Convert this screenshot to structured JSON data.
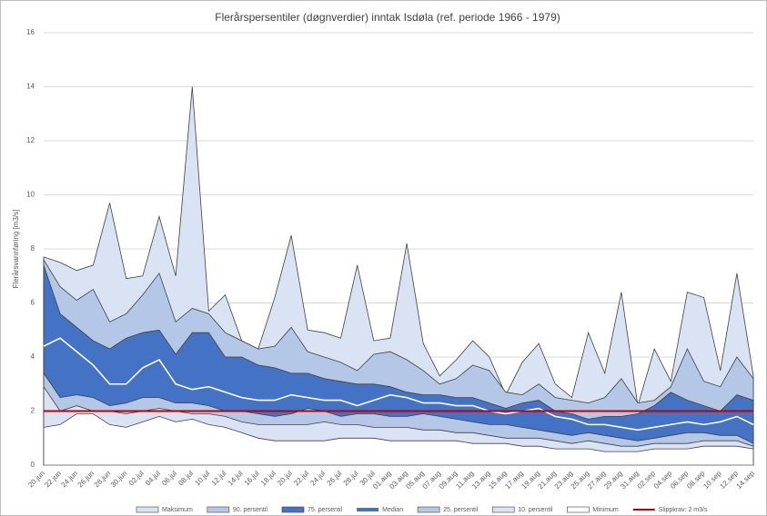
{
  "chart_data": {
    "type": "percentile-bands",
    "title": "Flerårspersentiler (døgnverdier) inntak Isdøla (ref. periode 1966 - 1979)",
    "y_label": "Flerårsvannføring [m3/s]",
    "categories": [
      "20.jun",
      "22.jun",
      "24.jun",
      "26.jun",
      "28.jun",
      "30.jun",
      "02.jul",
      "04.jul",
      "06.jul",
      "08.jul",
      "10.jul",
      "12.jul",
      "14.jul",
      "16.jul",
      "18.jul",
      "20.jul",
      "22.jul",
      "24.jul",
      "26.jul",
      "28.jul",
      "30.jul",
      "01.aug",
      "03.aug",
      "05.aug",
      "07.aug",
      "09.aug",
      "11.aug",
      "13.aug",
      "15.aug",
      "17.aug",
      "19.aug",
      "21.aug",
      "23.aug",
      "25.aug",
      "27.aug",
      "29.aug",
      "31.aug",
      "02.sep",
      "04.sep",
      "06.sep",
      "08.sep",
      "10.sep",
      "12.sep",
      "14.sep"
    ],
    "ylim": [
      0,
      16
    ],
    "yticks": [
      0,
      2,
      4,
      6,
      8,
      10,
      12,
      14,
      16
    ],
    "grid": true,
    "series": [
      {
        "name": "Maksimum",
        "color": "#dae3f3",
        "values": [
          7.7,
          7.5,
          7.2,
          7.4,
          9.7,
          6.9,
          7.0,
          9.2,
          7.0,
          14.0,
          5.7,
          6.3,
          4.6,
          4.3,
          6.2,
          8.5,
          5.0,
          4.9,
          4.7,
          7.4,
          4.6,
          4.7,
          8.2,
          4.5,
          3.3,
          3.9,
          4.6,
          4.0,
          2.6,
          3.8,
          4.5,
          3.0,
          2.5,
          4.9,
          3.4,
          6.4,
          2.2,
          4.3,
          3.1,
          6.4,
          6.2,
          3.5,
          7.1,
          3.3
        ]
      },
      {
        "name": "90. persentil",
        "color": "#b4c7e7",
        "values": [
          7.6,
          6.6,
          6.1,
          6.5,
          5.3,
          5.6,
          6.3,
          7.1,
          5.3,
          5.8,
          5.6,
          4.9,
          4.6,
          4.3,
          4.4,
          5.1,
          4.2,
          4.0,
          3.8,
          3.5,
          4.1,
          4.2,
          3.9,
          3.5,
          3.0,
          3.2,
          3.7,
          3.5,
          2.7,
          2.6,
          3.0,
          2.5,
          2.4,
          2.3,
          2.5,
          3.2,
          2.3,
          2.4,
          2.9,
          4.3,
          3.1,
          2.9,
          4.0,
          3.2
        ]
      },
      {
        "name": "75. persentil",
        "color": "#4472c4",
        "values": [
          7.4,
          5.6,
          5.1,
          4.6,
          4.3,
          4.7,
          4.9,
          5.0,
          4.1,
          4.9,
          4.9,
          4.0,
          4.0,
          3.7,
          3.6,
          3.4,
          3.4,
          3.2,
          3.1,
          3.0,
          3.0,
          2.9,
          2.7,
          2.6,
          2.6,
          2.5,
          2.5,
          2.3,
          2.1,
          2.3,
          2.4,
          2.0,
          1.9,
          1.7,
          1.8,
          1.8,
          1.9,
          2.2,
          2.7,
          2.4,
          2.2,
          2.0,
          2.6,
          2.4
        ]
      },
      {
        "name": "Median",
        "color": "#4472c4",
        "values": [
          4.4,
          4.7,
          4.2,
          3.7,
          3.0,
          3.0,
          3.6,
          3.9,
          3.0,
          2.8,
          2.9,
          2.7,
          2.5,
          2.4,
          2.4,
          2.6,
          2.5,
          2.4,
          2.4,
          2.2,
          2.4,
          2.6,
          2.5,
          2.3,
          2.3,
          2.2,
          2.2,
          2.0,
          1.9,
          2.0,
          2.1,
          1.8,
          1.7,
          1.5,
          1.5,
          1.4,
          1.3,
          1.4,
          1.5,
          1.6,
          1.5,
          1.6,
          1.8,
          1.5
        ]
      },
      {
        "name": "25. persentil",
        "color": "#b4c7e7",
        "values": [
          3.4,
          2.5,
          2.6,
          2.5,
          2.2,
          2.3,
          2.5,
          2.5,
          2.3,
          2.3,
          2.2,
          2.0,
          2.0,
          1.9,
          1.8,
          1.9,
          2.1,
          2.0,
          1.8,
          1.9,
          1.9,
          1.8,
          1.8,
          1.9,
          1.8,
          1.7,
          1.6,
          1.5,
          1.5,
          1.4,
          1.3,
          1.2,
          1.1,
          1.2,
          1.1,
          1.0,
          0.9,
          1.0,
          1.1,
          1.2,
          1.2,
          1.1,
          1.1,
          0.8
        ]
      },
      {
        "name": "10. persentil",
        "color": "#dae3f3",
        "values": [
          2.9,
          2.0,
          2.2,
          2.0,
          2.0,
          1.9,
          2.0,
          2.1,
          2.0,
          1.9,
          1.9,
          1.8,
          1.6,
          1.5,
          1.5,
          1.5,
          1.5,
          1.6,
          1.5,
          1.5,
          1.4,
          1.4,
          1.4,
          1.3,
          1.3,
          1.2,
          1.2,
          1.1,
          1.0,
          1.0,
          1.0,
          0.9,
          0.8,
          0.9,
          0.8,
          0.7,
          0.7,
          0.8,
          0.8,
          0.8,
          0.9,
          0.9,
          0.9,
          0.7
        ]
      },
      {
        "name": "Minimum",
        "color": "#ffffff",
        "values": [
          1.4,
          1.5,
          1.9,
          1.9,
          1.5,
          1.4,
          1.6,
          1.8,
          1.6,
          1.7,
          1.5,
          1.4,
          1.2,
          1.0,
          0.9,
          0.9,
          0.9,
          0.9,
          1.0,
          1.0,
          1.0,
          0.9,
          0.9,
          0.9,
          0.9,
          0.9,
          0.8,
          0.8,
          0.8,
          0.7,
          0.7,
          0.6,
          0.6,
          0.6,
          0.5,
          0.5,
          0.5,
          0.6,
          0.6,
          0.6,
          0.7,
          0.7,
          0.7,
          0.6
        ]
      }
    ],
    "hline": {
      "name": "Slippkrav: 2 m3/s",
      "value": 2,
      "color": "#c00000"
    }
  }
}
